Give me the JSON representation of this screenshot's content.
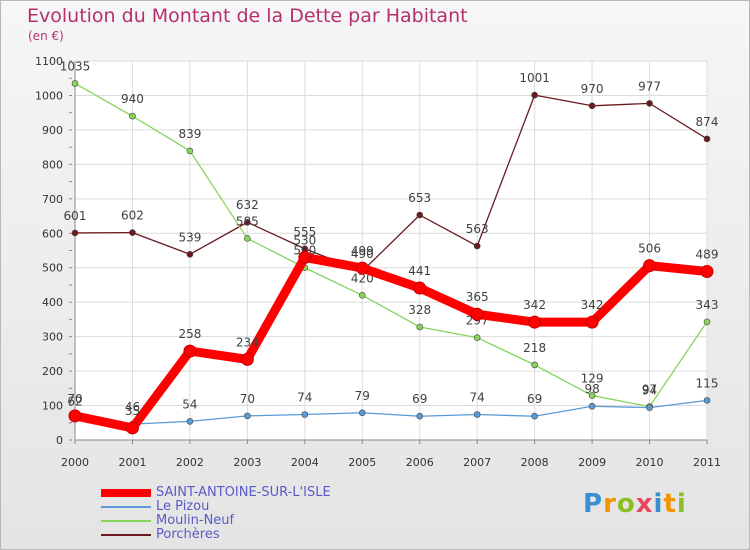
{
  "title": "Evolution du Montant de la Dette par Habitant",
  "unit": "(en €)",
  "logo": {
    "letters": [
      "P",
      "r",
      "o",
      "x",
      "i",
      "t",
      "i"
    ],
    "colors": [
      "#3a8fd0",
      "#f29400",
      "#8cbf26",
      "#e9475f",
      "#3a8fd0",
      "#f29400",
      "#8cbf26"
    ]
  },
  "chart_data": {
    "type": "line",
    "title": "Evolution du Montant de la Dette par Habitant",
    "subtitle": "(en €)",
    "x": [
      "2000",
      "2001",
      "2002",
      "2003",
      "2004",
      "2005",
      "2006",
      "2007",
      "2008",
      "2009",
      "2010",
      "2011"
    ],
    "ylim": [
      0,
      1100
    ],
    "yticks": [
      0,
      100,
      200,
      300,
      400,
      500,
      600,
      700,
      800,
      900,
      1000,
      1100
    ],
    "grid": true,
    "legend_position": "bottom-left",
    "series": [
      {
        "name": "Porchères",
        "color": "#6b1a1f",
        "values": [
          601,
          602,
          539,
          632,
          555,
          490,
          653,
          563,
          1001,
          970,
          977,
          874
        ]
      },
      {
        "name": "Moulin-Neuf",
        "color": "#86d45a",
        "values": [
          1035,
          940,
          839,
          585,
          500,
          420,
          328,
          297,
          218,
          129,
          97,
          343
        ]
      },
      {
        "name": "Le Pizou",
        "color": "#5a9bd5",
        "values": [
          62,
          46,
          54,
          70,
          74,
          79,
          69,
          74,
          69,
          98,
          94,
          115
        ]
      },
      {
        "name": "SAINT-ANTOINE-SUR-L'ISLE",
        "color": "#ff0000",
        "values": [
          70,
          35,
          258,
          234,
          530,
          499,
          441,
          365,
          342,
          342,
          506,
          489
        ]
      }
    ],
    "legend_order": [
      "SAINT-ANTOINE-SUR-L'ISLE",
      "Le Pizou",
      "Moulin-Neuf",
      "Porchères"
    ]
  }
}
